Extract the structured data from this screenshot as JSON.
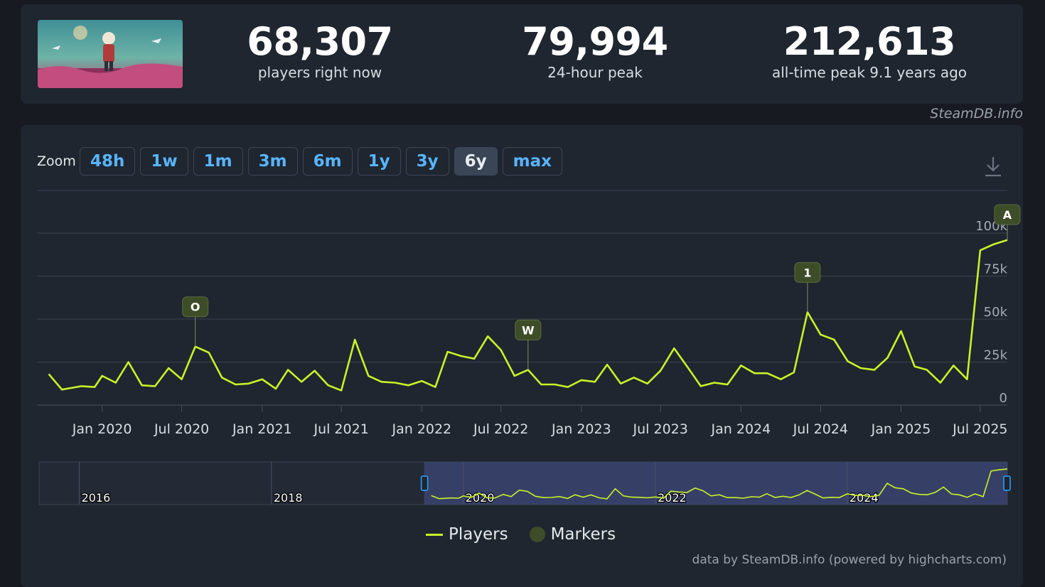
{
  "stats": [
    {
      "value": "68,307",
      "label": "players right now"
    },
    {
      "value": "79,994",
      "label": "24-hour peak"
    },
    {
      "value": "212,613",
      "label": "all-time peak 9.1 years ago"
    }
  ],
  "site_credit": "SteamDB.info",
  "zoom": {
    "label": "Zoom",
    "buttons": [
      "48h",
      "1w",
      "1m",
      "3m",
      "6m",
      "1y",
      "3y",
      "6y",
      "max"
    ],
    "active": "6y"
  },
  "legend": {
    "players": "Players",
    "markers": "Markers"
  },
  "footer_credit": "data by SteamDB.info (powered by highcharts.com)",
  "colors": {
    "line": "#c9f227",
    "marker": "#3d4d28",
    "accent": "#58b4ff",
    "navigator_selection": "#3a4470"
  },
  "chart_data": {
    "type": "line",
    "series": [
      {
        "name": "Players",
        "x": [
          "2019-09-01",
          "2019-10-01",
          "2019-11-15",
          "2019-12-15",
          "2020-01-01",
          "2020-02-01",
          "2020-03-01",
          "2020-04-01",
          "2020-05-01",
          "2020-06-01",
          "2020-07-01",
          "2020-08-01",
          "2020-09-01",
          "2020-10-01",
          "2020-11-01",
          "2020-12-01",
          "2021-01-01",
          "2021-02-01",
          "2021-03-01",
          "2021-04-01",
          "2021-05-01",
          "2021-06-01",
          "2021-07-01",
          "2021-08-01",
          "2021-09-01",
          "2021-10-01",
          "2021-11-01",
          "2021-12-01",
          "2022-01-01",
          "2022-02-01",
          "2022-03-01",
          "2022-04-01",
          "2022-05-01",
          "2022-06-01",
          "2022-07-01",
          "2022-08-01",
          "2022-09-01",
          "2022-10-01",
          "2022-11-01",
          "2022-12-01",
          "2023-01-01",
          "2023-02-01",
          "2023-03-01",
          "2023-04-01",
          "2023-05-01",
          "2023-06-01",
          "2023-07-01",
          "2023-08-01",
          "2023-09-01",
          "2023-10-01",
          "2023-11-01",
          "2023-12-01",
          "2024-01-01",
          "2024-02-01",
          "2024-03-01",
          "2024-04-01",
          "2024-05-01",
          "2024-06-01",
          "2024-07-01",
          "2024-08-01",
          "2024-09-01",
          "2024-10-01",
          "2024-11-01",
          "2024-12-01",
          "2025-01-01",
          "2025-02-01",
          "2025-03-01",
          "2025-04-01",
          "2025-05-01",
          "2025-06-01",
          "2025-07-01",
          "2025-08-01",
          "2025-09-01"
        ],
        "y": [
          18000,
          9000,
          11000,
          10500,
          17000,
          13000,
          25000,
          11500,
          11000,
          21500,
          15000,
          34000,
          30500,
          16000,
          12000,
          12500,
          15000,
          9500,
          20500,
          13500,
          20000,
          11500,
          8500,
          38000,
          17000,
          13500,
          13000,
          11500,
          14000,
          10500,
          31000,
          28500,
          27000,
          40000,
          32000,
          17000,
          20500,
          12000,
          12000,
          10500,
          14500,
          13500,
          23500,
          12500,
          16000,
          12500,
          20000,
          33000,
          22000,
          11000,
          13000,
          12000,
          23000,
          18500,
          18500,
          15000,
          19000,
          54000,
          41000,
          38000,
          25500,
          21500,
          20500,
          27500,
          43000,
          22500,
          20500,
          13000,
          23000,
          15000,
          90000,
          93500,
          96000
        ]
      }
    ],
    "markers": [
      {
        "label": "O",
        "x": "2020-08-01"
      },
      {
        "label": "W",
        "x": "2022-09-01"
      },
      {
        "label": "1",
        "x": "2024-06-01"
      },
      {
        "label": "A",
        "x": "2025-09-01"
      }
    ],
    "x_ticks": [
      "Jan 2020",
      "Jul 2020",
      "Jan 2021",
      "Jul 2021",
      "Jan 2022",
      "Jul 2022",
      "Jan 2023",
      "Jul 2023",
      "Jan 2024",
      "Jul 2024",
      "Jan 2025",
      "Jul 2025"
    ],
    "y_ticks": [
      "0",
      "25k",
      "50k",
      "75k",
      "100k"
    ],
    "ylim": [
      0,
      100000
    ],
    "xlim": [
      "2019-08-05",
      "2025-09-01"
    ],
    "grid": true,
    "navigator": {
      "range": [
        "2015-08-01",
        "2025-09-01"
      ],
      "selection": [
        "2019-08-05",
        "2025-09-01"
      ],
      "labels": [
        "2016",
        "2018",
        "2020",
        "2022",
        "2024"
      ]
    },
    "legend_position": "bottom-center"
  }
}
